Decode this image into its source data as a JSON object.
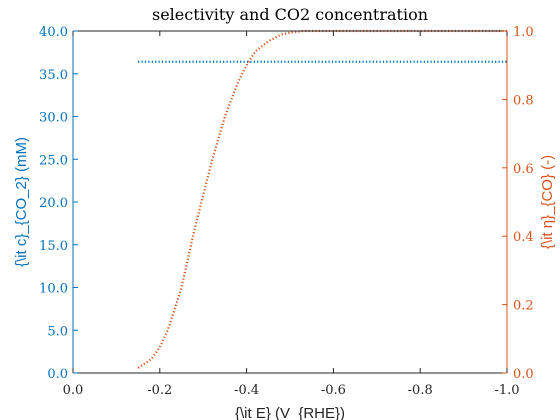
{
  "chart_data": {
    "type": "line",
    "title": "selectivity and CO2 concentration",
    "xlabel": "{\\it E} (V_{RHE})",
    "ylabel_left": "{\\it c}_{CO_2} (mM)",
    "ylabel_right": "{\\it η}_{CO} (-)",
    "xlim": [
      0.0,
      -1.0
    ],
    "ylim_left": [
      0,
      40
    ],
    "ylim_right": [
      0,
      1
    ],
    "grid": false,
    "x_ticks": [
      "0.0",
      "-0.2",
      "-0.4",
      "-0.6",
      "-0.8",
      "-1.0"
    ],
    "y_left_ticks": [
      "0.0",
      "5.0",
      "10.0",
      "15.0",
      "20.0",
      "25.0",
      "30.0",
      "35.0",
      "40.0"
    ],
    "y_right_ticks": [
      "0.0",
      "0.2",
      "0.4",
      "0.6",
      "0.8",
      "1.0"
    ],
    "colors": {
      "left_axis": "#0072BD",
      "right_axis": "#D95319",
      "axes": "#262626"
    },
    "series": [
      {
        "axis": "left",
        "style": "dotted",
        "color": "#0072BD",
        "x": [
          -0.15,
          -0.3,
          -0.5,
          -0.7,
          -0.9,
          -1.0
        ],
        "y": [
          36.4,
          36.4,
          36.4,
          36.4,
          36.4,
          36.4
        ]
      },
      {
        "axis": "right",
        "style": "dotted",
        "color": "#D95319",
        "x": [
          -0.15,
          -0.18,
          -0.2,
          -0.22,
          -0.25,
          -0.28,
          -0.3,
          -0.32,
          -0.35,
          -0.38,
          -0.4,
          -0.42,
          -0.45,
          -0.48,
          -0.5,
          -0.53,
          -0.56,
          -0.6,
          -0.65,
          -0.7,
          -0.8,
          -0.9,
          -1.0
        ],
        "y": [
          0.015,
          0.04,
          0.075,
          0.13,
          0.25,
          0.42,
          0.52,
          0.62,
          0.75,
          0.85,
          0.9,
          0.94,
          0.97,
          0.99,
          0.995,
          1.0,
          1.0,
          1.0,
          1.0,
          1.0,
          1.0,
          1.0,
          1.0
        ]
      }
    ]
  }
}
